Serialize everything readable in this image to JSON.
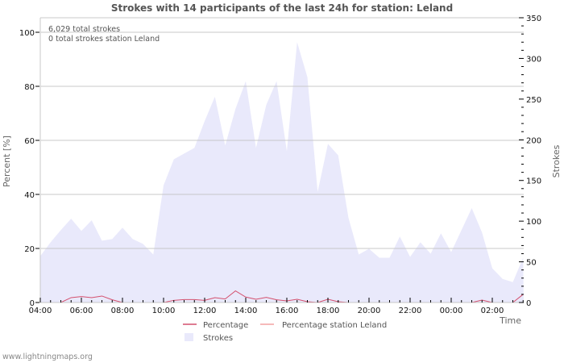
{
  "title": "Strokes with 14 participants of the last 24h for station: Leland",
  "info": {
    "total_strokes": "6,029 total strokes",
    "station_strokes": "0 total strokes station Leland"
  },
  "footer": "www.lightningmaps.org",
  "legend": {
    "percentage": "Percentage",
    "percentage_station": "Percentage station Leland",
    "strokes": "Strokes"
  },
  "colors": {
    "strokes_fill": "#e9e9fb",
    "percentage_line": "#d4506e",
    "percentage_station_line": "#f4a3a3",
    "grid": "#c8c8c8",
    "axis": "#c8c8c8"
  },
  "chart_data": {
    "type": "area",
    "title": "Strokes with 14 participants of the last 24h for station: Leland",
    "xlabel": "Time",
    "ylabel_left": "Percent   [%]",
    "ylabel_right": "Strokes",
    "ylim_left": [
      0,
      105
    ],
    "ylim_right": [
      0,
      350
    ],
    "yticks_left": [
      "0",
      "20",
      "40",
      "60",
      "80",
      "100"
    ],
    "yticks_right": [
      "0",
      "50",
      "100",
      "150",
      "200",
      "250",
      "300",
      "350"
    ],
    "xticks": [
      "04:00",
      "06:00",
      "08:00",
      "10:00",
      "12:00",
      "14:00",
      "16:00",
      "18:00",
      "20:00",
      "22:00",
      "00:00",
      "02:00"
    ],
    "grid": true,
    "legend_position": "bottom",
    "x": [
      "04:00",
      "04:30",
      "05:00",
      "05:30",
      "06:00",
      "06:30",
      "07:00",
      "07:30",
      "08:00",
      "08:30",
      "09:00",
      "09:30",
      "10:00",
      "10:30",
      "11:00",
      "11:30",
      "12:00",
      "12:30",
      "13:00",
      "13:30",
      "14:00",
      "14:30",
      "15:00",
      "15:30",
      "16:00",
      "16:30",
      "17:00",
      "17:30",
      "18:00",
      "18:30",
      "19:00",
      "19:30",
      "20:00",
      "20:30",
      "21:00",
      "21:30",
      "22:00",
      "22:30",
      "23:00",
      "23:30",
      "00:00",
      "00:30",
      "01:00",
      "01:30",
      "02:00",
      "02:30",
      "03:00",
      "03:30"
    ],
    "series": [
      {
        "name": "Strokes",
        "axis": "right",
        "values": [
          57,
          74,
          89,
          103,
          88,
          101,
          76,
          78,
          92,
          78,
          72,
          59,
          144,
          176,
          183,
          190,
          223,
          253,
          193,
          238,
          272,
          190,
          243,
          272,
          186,
          320,
          277,
          136,
          195,
          181,
          104,
          59,
          66,
          55,
          55,
          81,
          56,
          74,
          60,
          85,
          62,
          89,
          116,
          86,
          42,
          29,
          25,
          55
        ]
      },
      {
        "name": "Percentage",
        "axis": "left",
        "values": [
          0,
          0,
          0,
          1.8,
          2.2,
          1.8,
          2.4,
          1.0,
          0,
          0,
          0,
          0,
          0,
          0.8,
          1.1,
          1.1,
          0.8,
          1.8,
          1.3,
          4.3,
          2.0,
          1.2,
          1.9,
          1.0,
          0.6,
          1.2,
          0.3,
          0,
          1.2,
          0.3,
          0,
          0,
          0,
          0,
          0,
          0,
          0,
          0,
          0,
          0,
          0,
          0,
          0,
          0.9,
          0,
          0,
          0,
          3.0
        ]
      },
      {
        "name": "Percentage station Leland",
        "axis": "left",
        "values": [
          0,
          0,
          0,
          0,
          0,
          0,
          0,
          0,
          0,
          0,
          0,
          0,
          0,
          0,
          0,
          0,
          0,
          0,
          0,
          0,
          0,
          0,
          0,
          0,
          0,
          0,
          0,
          0,
          0,
          0,
          0,
          0,
          0,
          0,
          0,
          0,
          0,
          0,
          0,
          0,
          0,
          0,
          0,
          0,
          0,
          0,
          0,
          0
        ]
      }
    ]
  }
}
